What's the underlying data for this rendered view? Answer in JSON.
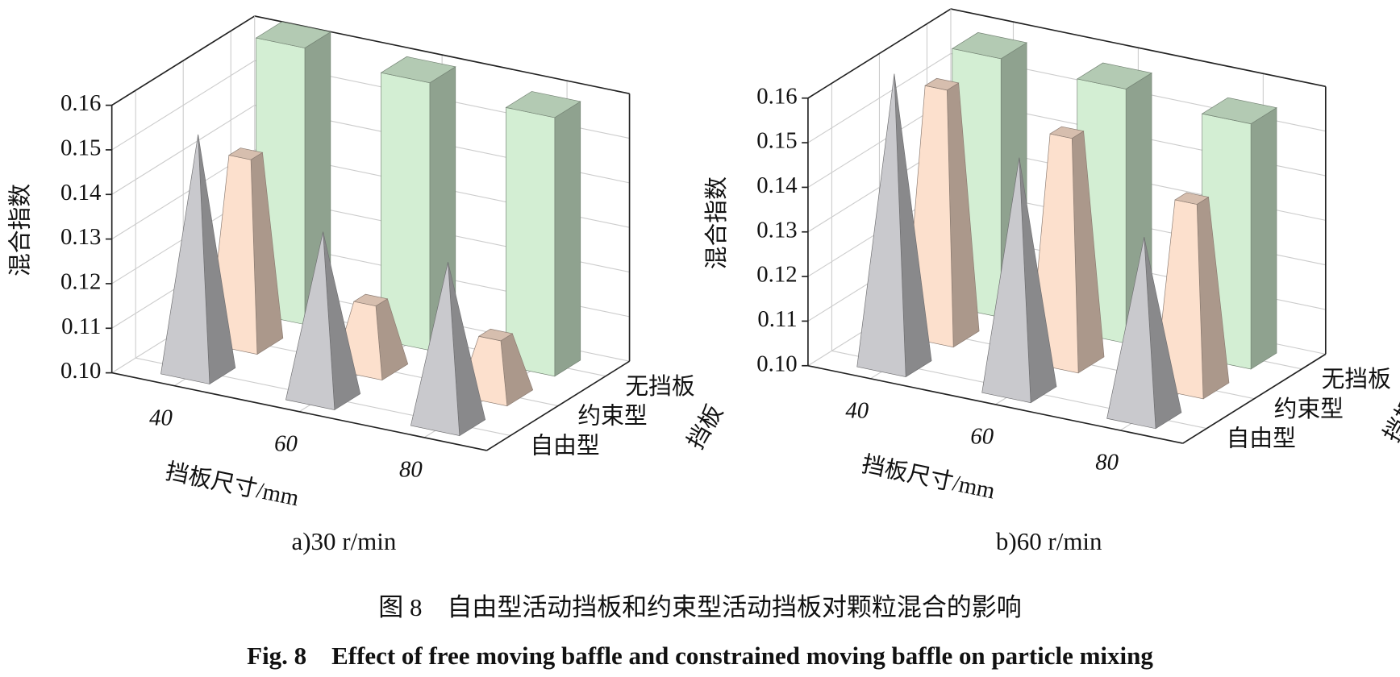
{
  "chart_data": [
    {
      "type": "bar3d",
      "subtitle": "a)30 r/min",
      "ylabel": "混合指数",
      "xlabel": "挡板尺寸/mm",
      "zlabel": "挡板",
      "categories": [
        "40",
        "60",
        "80"
      ],
      "series": [
        {
          "name": "自由型",
          "shape": "pyramid",
          "color": "#c9c9cd",
          "values": [
            0.153,
            0.137,
            0.136
          ]
        },
        {
          "name": "约束型",
          "shape": "frustum",
          "color": "#fce0cd",
          "values": [
            0.142,
            0.115,
            0.113
          ]
        },
        {
          "name": "无挡板",
          "shape": "box",
          "color": "#d3eed3",
          "values": [
            0.162,
            0.16,
            0.158
          ]
        }
      ],
      "ylim": [
        0.1,
        0.16
      ],
      "yticks": [
        {
          "value": 0.1,
          "label": "0.10"
        },
        {
          "value": 0.11,
          "label": "0.11"
        },
        {
          "value": 0.12,
          "label": "0.12"
        },
        {
          "value": 0.13,
          "label": "0.13"
        },
        {
          "value": 0.14,
          "label": "0.14"
        },
        {
          "value": 0.15,
          "label": "0.15"
        },
        {
          "value": 0.16,
          "label": "0.16"
        }
      ],
      "grid": true
    },
    {
      "type": "bar3d",
      "subtitle": "b)60 r/min",
      "ylabel": "混合指数",
      "xlabel": "挡板尺寸/mm",
      "zlabel": "挡板",
      "categories": [
        "40",
        "60",
        "80"
      ],
      "series": [
        {
          "name": "自由型",
          "shape": "pyramid",
          "color": "#c9c9cd",
          "values": [
            0.165,
            0.152,
            0.14
          ]
        },
        {
          "name": "约束型",
          "shape": "frustum",
          "color": "#fce0cd",
          "values": [
            0.156,
            0.151,
            0.142
          ]
        },
        {
          "name": "无挡板",
          "shape": "box",
          "color": "#d3eed3",
          "values": [
            0.158,
            0.157,
            0.155
          ]
        }
      ],
      "ylim": [
        0.1,
        0.16
      ],
      "yticks": [
        {
          "value": 0.1,
          "label": "0.10"
        },
        {
          "value": 0.11,
          "label": "0.11"
        },
        {
          "value": 0.12,
          "label": "0.12"
        },
        {
          "value": 0.13,
          "label": "0.13"
        },
        {
          "value": 0.14,
          "label": "0.14"
        },
        {
          "value": 0.15,
          "label": "0.15"
        },
        {
          "value": 0.16,
          "label": "0.16"
        }
      ],
      "grid": true
    }
  ],
  "caption_zh": "图 8　自由型活动挡板和约束型活动挡板对颗粒混合的影响",
  "caption_en": "Fig. 8　Effect of free moving baffle and constrained moving baffle on particle mixing"
}
